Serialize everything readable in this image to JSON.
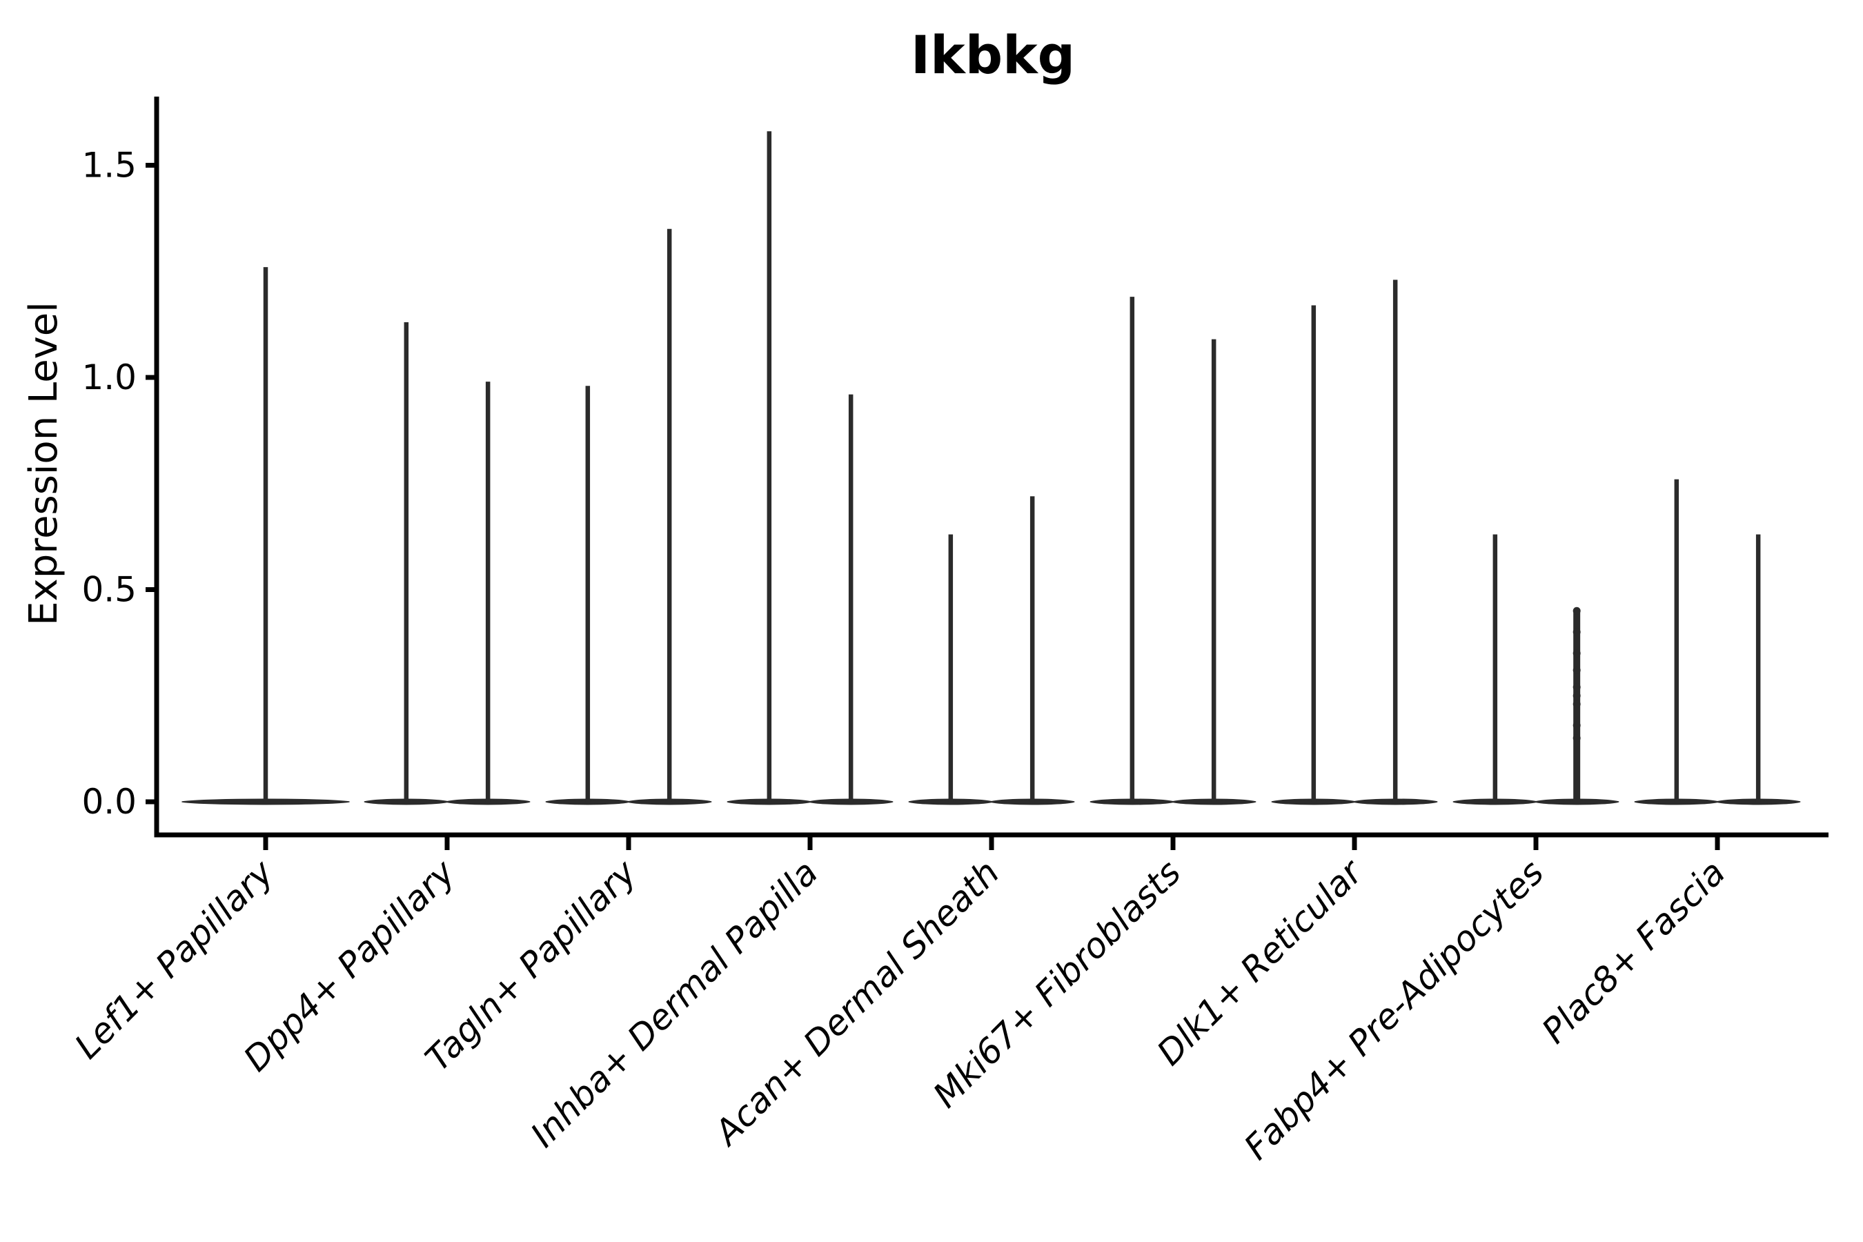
{
  "figure": {
    "background": "#ffffff"
  },
  "colors": {
    "violin": "#2b2b2b",
    "axis": "#000000",
    "text": "#000000",
    "background": "#ffffff"
  },
  "chart_data": {
    "type": "violin",
    "title": "Ikbkg",
    "xlabel": "",
    "ylabel": "Expression Level",
    "ytick_labels": [
      "0.0",
      "0.5",
      "1.0",
      "1.5"
    ],
    "ytick_values": [
      0.0,
      0.5,
      1.0,
      1.5
    ],
    "ylim": [
      -0.08,
      1.66
    ],
    "grid": false,
    "legend": "none",
    "spines": [
      "left",
      "bottom"
    ],
    "xtick_rotation_deg": 45,
    "xtick_fontstyle": "italic",
    "description": "Each violin is flattened at expression 0 (flat lens-shaped base) with a single thin density spike rising to the maximum expression value. Categories 2-9 contain two half-width violins; category 1 has one full-width violin. Small jitter points are visible along the Fabp4+ Pre-Adipocytes right spike.",
    "categories": [
      "Lef1+ Papillary",
      "Dpp4+ Papillary",
      "Tagln+ Papillary",
      "Inhba+ Dermal Papilla",
      "Acan+ Dermal Sheath",
      "Mki67+ Fibroblasts",
      "Dlk1+ Reticular",
      "Fabp4+ Pre-Adipocytes",
      "Plac8+ Fascia"
    ],
    "series": [
      {
        "category": "Lef1+ Papillary",
        "violins": [
          {
            "offset": 0.0,
            "half_width": 0.46,
            "max": 1.26,
            "thick": false,
            "points": []
          }
        ]
      },
      {
        "category": "Dpp4+ Papillary",
        "violins": [
          {
            "offset": -0.225,
            "half_width": 0.23,
            "max": 1.13,
            "thick": false,
            "points": []
          },
          {
            "offset": 0.225,
            "half_width": 0.23,
            "max": 0.99,
            "thick": false,
            "points": []
          }
        ]
      },
      {
        "category": "Tagln+ Papillary",
        "violins": [
          {
            "offset": -0.225,
            "half_width": 0.23,
            "max": 0.98,
            "thick": false,
            "points": []
          },
          {
            "offset": 0.225,
            "half_width": 0.23,
            "max": 1.35,
            "thick": false,
            "points": []
          }
        ]
      },
      {
        "category": "Inhba+ Dermal Papilla",
        "violins": [
          {
            "offset": -0.225,
            "half_width": 0.23,
            "max": 1.58,
            "thick": false,
            "points": []
          },
          {
            "offset": 0.225,
            "half_width": 0.23,
            "max": 0.96,
            "thick": false,
            "points": []
          }
        ]
      },
      {
        "category": "Acan+ Dermal Sheath",
        "violins": [
          {
            "offset": -0.225,
            "half_width": 0.23,
            "max": 0.63,
            "thick": false,
            "points": []
          },
          {
            "offset": 0.225,
            "half_width": 0.23,
            "max": 0.72,
            "thick": false,
            "points": []
          }
        ]
      },
      {
        "category": "Mki67+ Fibroblasts",
        "violins": [
          {
            "offset": -0.225,
            "half_width": 0.23,
            "max": 1.19,
            "thick": false,
            "points": []
          },
          {
            "offset": 0.225,
            "half_width": 0.23,
            "max": 1.09,
            "thick": false,
            "points": []
          }
        ]
      },
      {
        "category": "Dlk1+ Reticular",
        "violins": [
          {
            "offset": -0.225,
            "half_width": 0.23,
            "max": 1.17,
            "thick": false,
            "points": []
          },
          {
            "offset": 0.225,
            "half_width": 0.23,
            "max": 1.23,
            "thick": false,
            "points": []
          }
        ]
      },
      {
        "category": "Fabp4+ Pre-Adipocytes",
        "violins": [
          {
            "offset": -0.225,
            "half_width": 0.23,
            "max": 0.63,
            "thick": false,
            "points": []
          },
          {
            "offset": 0.225,
            "half_width": 0.23,
            "max": 0.45,
            "thick": true,
            "points": [
              0.45,
              0.4,
              0.35,
              0.31,
              0.27,
              0.25,
              0.23,
              0.18,
              0.15
            ]
          }
        ]
      },
      {
        "category": "Plac8+ Fascia",
        "violins": [
          {
            "offset": -0.225,
            "half_width": 0.23,
            "max": 0.76,
            "thick": false,
            "points": []
          },
          {
            "offset": 0.225,
            "half_width": 0.23,
            "max": 0.63,
            "thick": false,
            "points": []
          }
        ]
      }
    ]
  }
}
